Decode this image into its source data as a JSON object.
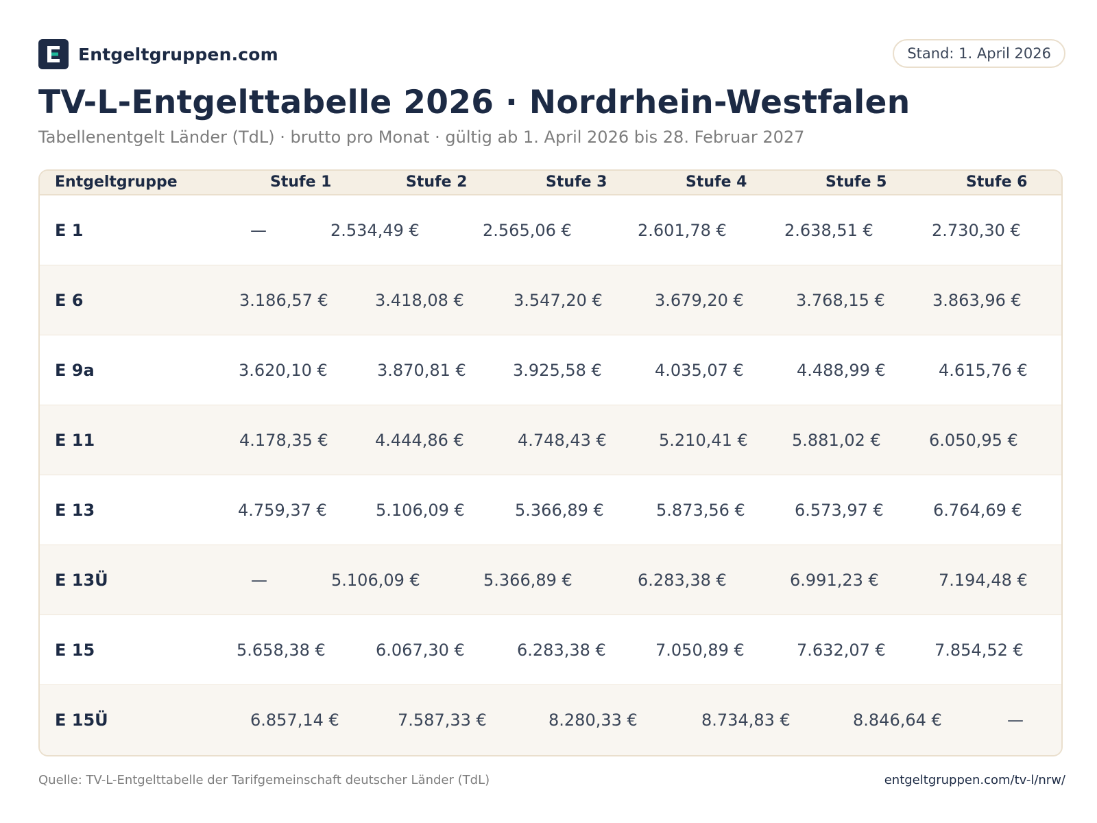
{
  "brand": {
    "name": "Entgeltgruppen.com",
    "logo_icon": "entgeltgruppen-logo-e-icon",
    "logo_bg": "#1e2b45",
    "logo_accent": "#1fb89a"
  },
  "badge": {
    "stand": "Stand: 1. April 2026"
  },
  "title": "TV-L-Entgelttabelle 2026 · Nordrhein-Westfalen",
  "subtitle": "Tabellenentgelt Länder (TdL) · brutto pro Monat · gültig ab 1. April 2026 bis 28. Februar 2027",
  "table": {
    "headers": [
      "Entgeltgruppe",
      "Stufe 1",
      "Stufe 2",
      "Stufe 3",
      "Stufe 4",
      "Stufe 5",
      "Stufe 6"
    ],
    "rows": [
      {
        "group": "E 1",
        "cells": [
          "—",
          "2.534,49 €",
          "2.565,06 €",
          "2.601,78 €",
          "2.638,51 €",
          "2.730,30 €"
        ]
      },
      {
        "group": "E 6",
        "cells": [
          "3.186,57 €",
          "3.418,08 €",
          "3.547,20 €",
          "3.679,20 €",
          "3.768,15 €",
          "3.863,96 €"
        ]
      },
      {
        "group": "E 9a",
        "cells": [
          "3.620,10 €",
          "3.870,81 €",
          "3.925,58 €",
          "4.035,07 €",
          "4.488,99 €",
          "4.615,76 €"
        ]
      },
      {
        "group": "E 11",
        "cells": [
          "4.178,35 €",
          "4.444,86 €",
          "4.748,43 €",
          "5.210,41 €",
          "5.881,02 €",
          "6.050,95 €"
        ]
      },
      {
        "group": "E 13",
        "cells": [
          "4.759,37 €",
          "5.106,09 €",
          "5.366,89 €",
          "5.873,56 €",
          "6.573,97 €",
          "6.764,69 €"
        ]
      },
      {
        "group": "E 13Ü",
        "cells": [
          "—",
          "5.106,09 €",
          "5.366,89 €",
          "6.283,38 €",
          "6.991,23 €",
          "7.194,48 €"
        ]
      },
      {
        "group": "E 15",
        "cells": [
          "5.658,38 €",
          "6.067,30 €",
          "6.283,38 €",
          "7.050,89 €",
          "7.632,07 €",
          "7.854,52 €"
        ]
      },
      {
        "group": "E 15Ü",
        "cells": [
          "6.857,14 €",
          "7.587,33 €",
          "8.280,33 €",
          "8.734,83 €",
          "8.846,64 €",
          "—"
        ]
      }
    ]
  },
  "footer": {
    "source": "Quelle: TV-L-Entgelttabelle der Tarifgemeinschaft deutscher Länder (TdL)",
    "url": "entgeltgruppen.com/tv-l/nrw/"
  }
}
